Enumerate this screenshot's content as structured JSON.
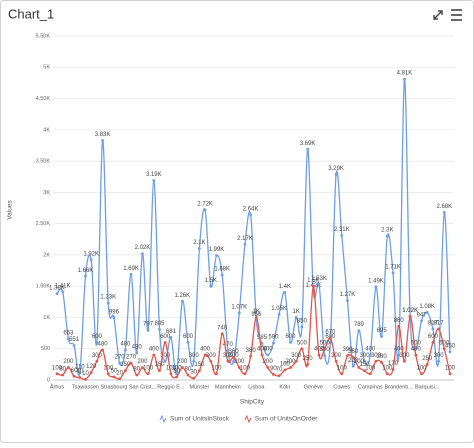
{
  "chart_data": {
    "type": "spline",
    "title": "Chart_1",
    "x_label": "ShipCity",
    "y_label": "Values",
    "categories": [
      "Århus",
      null,
      null,
      null,
      null,
      "Tsawassen",
      null,
      null,
      null,
      null,
      "Strasbourg",
      null,
      null,
      null,
      null,
      "San Crist...",
      null,
      null,
      null,
      null,
      "Reggio E...",
      null,
      null,
      null,
      null,
      "Münster",
      null,
      null,
      null,
      null,
      "Mannheim",
      null,
      null,
      null,
      null,
      "Lisboa",
      null,
      null,
      null,
      null,
      "Köln",
      null,
      null,
      null,
      null,
      "Genève",
      null,
      null,
      null,
      null,
      "Cowes",
      null,
      null,
      null,
      null,
      "Campinas",
      null,
      null,
      null,
      null,
      "Brandenb...",
      null,
      null,
      null,
      null,
      "Barquisi...",
      null,
      null,
      null,
      null
    ],
    "ylim": [
      0,
      5500
    ],
    "yticks": [
      0,
      500,
      {
        "value": 1000,
        "label": "1K"
      },
      {
        "value": 1500,
        "label": "1.50K"
      },
      {
        "value": 2000,
        "label": "2K"
      },
      {
        "value": 2500,
        "label": "2.50K"
      },
      {
        "value": 3000,
        "label": "3K"
      },
      {
        "value": 3500,
        "label": "3.50K"
      },
      {
        "value": 4000,
        "label": "4K"
      },
      {
        "value": 4500,
        "label": "4.50K"
      },
      {
        "value": 5000,
        "label": "5K"
      },
      {
        "value": 5500,
        "label": "5.50K"
      }
    ],
    "grid": true,
    "legend": "bottom",
    "series": [
      {
        "name": "Sum of UnitsInStock",
        "color": "#6e9fe6",
        "values": [
          1380,
          1410,
          653,
          551,
          110,
          1660,
          1920,
          600,
          3830,
          1230,
          996,
          270,
          480,
          1690,
          430,
          2020,
          797,
          3190,
          805,
          300,
          681,
          100,
          1260,
          600,
          300,
          2100,
          2720,
          1500,
          1990,
          1680,
          470,
          300,
          1070,
          2170,
          2640,
          956,
          585,
          400,
          590,
          1050,
          1400,
          600,
          1000,
          850,
          3690,
          1420,
          1530,
          390,
          600,
          3290,
          2310,
          1270,
          220,
          789,
          300,
          400,
          1490,
          695,
          2300,
          1710,
          400,
          4810,
          1020,
          500,
          947,
          1080,
          817,
          300,
          2680,
          450
        ],
        "value_labels": [
          "1.38K",
          "1.41K",
          null,
          null,
          null,
          "1.66K",
          "1.92K",
          null,
          "3.83K",
          "1.23K",
          null,
          null,
          null,
          "1.69K",
          null,
          "2.02K",
          null,
          "3.19K",
          null,
          null,
          null,
          null,
          "1.26K",
          null,
          null,
          "2.1K",
          "2.72K",
          "1.5K",
          "1.99K",
          "1.68K",
          null,
          null,
          "1.07K",
          "2.17K",
          "2.64K",
          null,
          null,
          null,
          null,
          "1.05K",
          "1.4K",
          null,
          "1K",
          null,
          "3.69K",
          "1.42K",
          "1.53K",
          null,
          null,
          "3.29K",
          "2.31K",
          "1.27K",
          null,
          null,
          null,
          null,
          "1.49K",
          null,
          "2.3K",
          "1.71K",
          null,
          "4.81K",
          "1.02K",
          null,
          null,
          "1.08K",
          null,
          null,
          "2.68K",
          null
        ]
      },
      {
        "name": "Sum of UnitsOnOrder",
        "color": "#e0564b",
        "values": [
          100,
          80,
          200,
          60,
          40,
          10,
          120,
          300,
          480,
          100,
          50,
          20,
          150,
          270,
          80,
          200,
          100,
          400,
          150,
          600,
          100,
          50,
          200,
          80,
          30,
          150,
          400,
          300,
          100,
          740,
          300,
          360,
          200,
          100,
          380,
          1000,
          400,
          200,
          90,
          70,
          160,
          200,
          300,
          500,
          250,
          1500,
          400,
          500,
          670,
          300,
          100,
          390,
          360,
          200,
          150,
          100,
          300,
          280,
          100,
          170,
          860,
          300,
          1020,
          400,
          100,
          250,
          600,
          817,
          500,
          100
        ],
        "value_labels": [
          null,
          null,
          null,
          null,
          null,
          null,
          null,
          null,
          null,
          null,
          null,
          null,
          null,
          null,
          null,
          null,
          null,
          null,
          null,
          null,
          null,
          null,
          null,
          null,
          null,
          null,
          null,
          null,
          null,
          null,
          null,
          null,
          null,
          null,
          null,
          "1K",
          null,
          null,
          null,
          null,
          null,
          null,
          null,
          null,
          null,
          "1.5K",
          null,
          null,
          null,
          null,
          null,
          null,
          null,
          null,
          null,
          null,
          null,
          null,
          null,
          null,
          null,
          null,
          "1.02K",
          null,
          null,
          null,
          null,
          null,
          null,
          null
        ]
      }
    ]
  }
}
